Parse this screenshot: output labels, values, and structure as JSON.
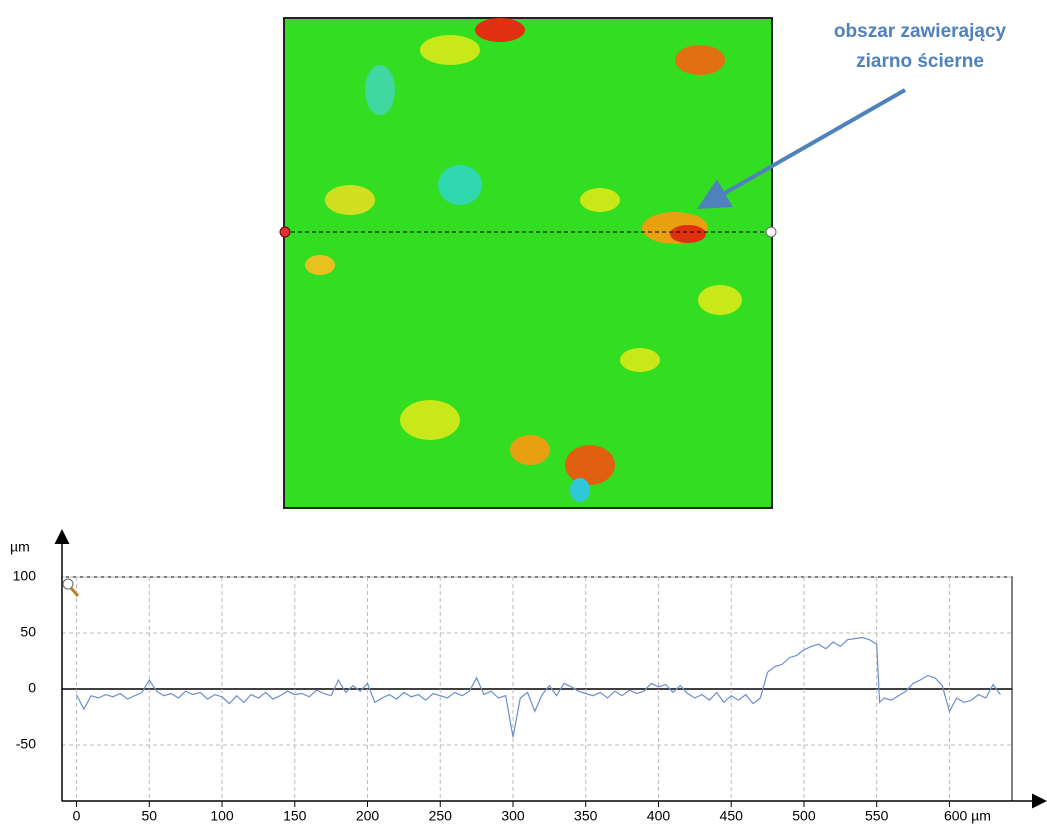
{
  "chart_data": {
    "type": "line",
    "annotation": [
      "obszar zawierający",
      "ziarno ścierne"
    ],
    "y_label": "µm",
    "x": [
      0,
      5,
      10,
      15,
      20,
      25,
      30,
      35,
      40,
      45,
      50,
      55,
      60,
      65,
      70,
      75,
      80,
      85,
      90,
      95,
      100,
      105,
      110,
      115,
      120,
      125,
      130,
      135,
      140,
      145,
      150,
      155,
      160,
      165,
      170,
      175,
      180,
      185,
      190,
      195,
      200,
      205,
      210,
      215,
      220,
      225,
      230,
      235,
      240,
      245,
      250,
      255,
      260,
      265,
      270,
      275,
      280,
      285,
      290,
      295,
      300,
      305,
      310,
      315,
      320,
      325,
      330,
      335,
      340,
      345,
      350,
      355,
      360,
      365,
      370,
      375,
      380,
      385,
      390,
      395,
      400,
      405,
      410,
      415,
      420,
      425,
      430,
      435,
      440,
      445,
      450,
      455,
      460,
      465,
      470,
      475,
      480,
      485,
      490,
      495,
      500,
      505,
      510,
      515,
      520,
      525,
      530,
      535,
      540,
      545,
      550,
      552,
      555,
      560,
      565,
      570,
      575,
      580,
      585,
      590,
      595,
      600,
      605,
      610,
      615,
      620,
      625,
      630,
      635
    ],
    "values": [
      -5,
      -18,
      -6,
      -8,
      -5,
      -7,
      -4,
      -9,
      -6,
      -3,
      8,
      -2,
      -6,
      -4,
      -8,
      -2,
      -5,
      -3,
      -9,
      -5,
      -7,
      -13,
      -6,
      -12,
      -5,
      -8,
      -3,
      -9,
      -6,
      -2,
      -5,
      -4,
      -7,
      -1,
      -4,
      -6,
      8,
      -3,
      3,
      -2,
      5,
      -12,
      -8,
      -5,
      -9,
      -3,
      -7,
      -5,
      -10,
      -4,
      -6,
      -8,
      -3,
      -6,
      -2,
      10,
      -5,
      -2,
      -8,
      -6,
      -43,
      -8,
      -3,
      -20,
      -5,
      3,
      -6,
      5,
      2,
      -2,
      -4,
      -6,
      -3,
      -8,
      -2,
      -6,
      -1,
      -4,
      -2,
      5,
      2,
      4,
      -3,
      3,
      -4,
      -8,
      -5,
      -10,
      -3,
      -12,
      -6,
      -10,
      -5,
      -13,
      -8,
      15,
      20,
      22,
      28,
      30,
      35,
      38,
      40,
      36,
      42,
      38,
      44,
      45,
      46,
      44,
      40,
      -12,
      -8,
      -10,
      -6,
      -2,
      5,
      8,
      12,
      10,
      3,
      -20,
      -8,
      -12,
      -10,
      -5,
      -8,
      4,
      -5
    ],
    "color": "#6b8fd0",
    "xlim": [
      -10,
      643
    ],
    "ylim": [
      -100,
      100
    ],
    "xticks": [
      0,
      50,
      100,
      150,
      200,
      250,
      300,
      350,
      400,
      450,
      500,
      550,
      {
        "value": 600,
        "label": "600 µm"
      }
    ],
    "yticks": [
      -50,
      0,
      50,
      100
    ],
    "grid": true
  }
}
